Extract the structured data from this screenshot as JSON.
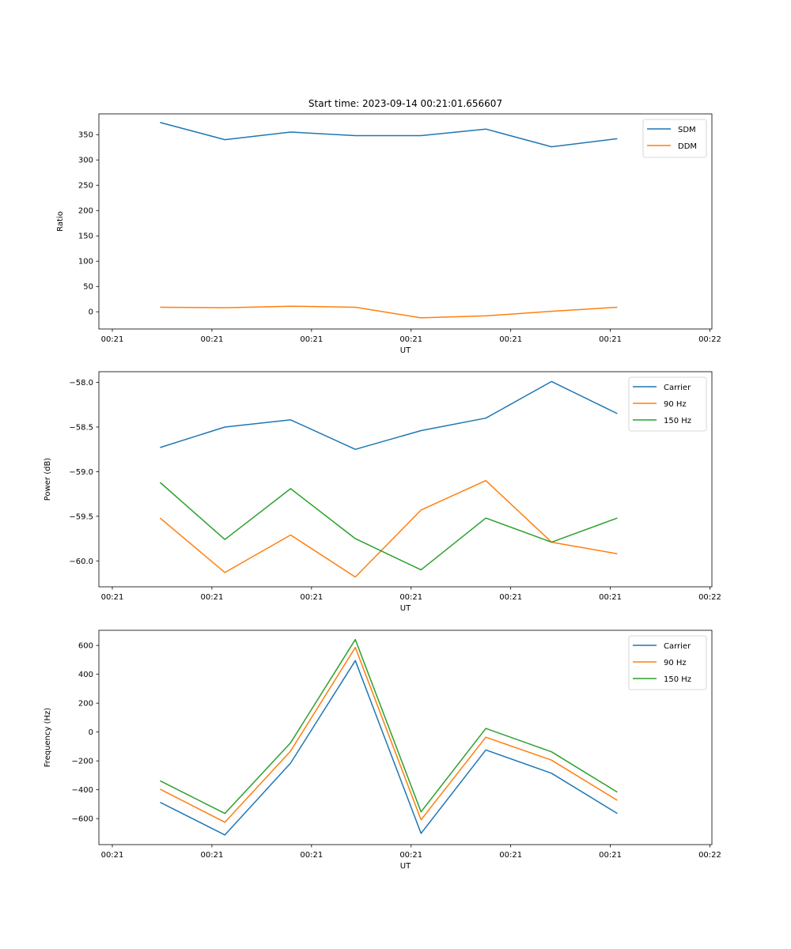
{
  "figure_title": "Start time: 2023-09-14 00:21:01.656607",
  "chart_data": [
    {
      "type": "line",
      "title": "Start time: 2023-09-14 00:21:01.656607",
      "xlabel": "UT",
      "ylabel": "Ratio",
      "x_unit": "seconds after 00:21:00",
      "x": [
        4.8,
        11.3,
        17.9,
        24.4,
        31.0,
        37.5,
        44.1,
        50.7
      ],
      "xlim": [
        -1.35,
        60.2
      ],
      "xticks": [
        0,
        10,
        20,
        30,
        40,
        50,
        60
      ],
      "xtick_labels": [
        "00:21",
        "00:21",
        "00:21",
        "00:21",
        "00:21",
        "00:21",
        "00:22"
      ],
      "ylim": [
        -34,
        391
      ],
      "yticks": [
        0,
        50,
        100,
        150,
        200,
        250,
        300,
        350
      ],
      "ytick_labels": [
        "0",
        "50",
        "100",
        "150",
        "200",
        "250",
        "300",
        "350"
      ],
      "grid": false,
      "legend": "top-right",
      "series": [
        {
          "name": "SDM",
          "color": "#1f77b4",
          "values": [
            374,
            340,
            355,
            348,
            348,
            361,
            326,
            342
          ]
        },
        {
          "name": "DDM",
          "color": "#ff7f0e",
          "values": [
            9,
            8,
            11,
            9,
            -12,
            -8,
            1,
            9
          ]
        }
      ]
    },
    {
      "type": "line",
      "title": "",
      "xlabel": "UT",
      "ylabel": "Power (dB)",
      "x_unit": "seconds after 00:21:00",
      "x": [
        4.8,
        11.3,
        17.9,
        24.4,
        31.0,
        37.5,
        44.1,
        50.7
      ],
      "xlim": [
        -1.35,
        60.2
      ],
      "xticks": [
        0,
        10,
        20,
        30,
        40,
        50,
        60
      ],
      "xtick_labels": [
        "00:21",
        "00:21",
        "00:21",
        "00:21",
        "00:21",
        "00:21",
        "00:22"
      ],
      "ylim": [
        -60.29,
        -57.88
      ],
      "yticks": [
        -60.0,
        -59.5,
        -59.0,
        -58.5,
        -58.0
      ],
      "ytick_labels": [
        "−60.0",
        "−59.5",
        "−59.0",
        "−58.5",
        "−58.0"
      ],
      "grid": false,
      "legend": "top-right",
      "series": [
        {
          "name": "Carrier",
          "color": "#1f77b4",
          "values": [
            -58.73,
            -58.5,
            -58.42,
            -58.75,
            -58.54,
            -58.4,
            -57.99,
            -58.35
          ]
        },
        {
          "name": "90 Hz",
          "color": "#ff7f0e",
          "values": [
            -59.52,
            -60.13,
            -59.71,
            -60.18,
            -59.43,
            -59.1,
            -59.79,
            -59.92
          ]
        },
        {
          "name": "150 Hz",
          "color": "#2ca02c",
          "values": [
            -59.12,
            -59.76,
            -59.19,
            -59.75,
            -60.1,
            -59.52,
            -59.79,
            -59.52
          ]
        }
      ]
    },
    {
      "type": "line",
      "title": "",
      "xlabel": "UT",
      "ylabel": "Frequency (Hz)",
      "x_unit": "seconds after 00:21:00",
      "x": [
        4.8,
        11.3,
        17.9,
        24.4,
        31.0,
        37.5,
        44.1,
        50.7
      ],
      "xlim": [
        -1.35,
        60.2
      ],
      "xticks": [
        0,
        10,
        20,
        30,
        40,
        50,
        60
      ],
      "xtick_labels": [
        "00:21",
        "00:21",
        "00:21",
        "00:21",
        "00:21",
        "00:21",
        "00:22"
      ],
      "ylim": [
        -780,
        705
      ],
      "yticks": [
        -600,
        -400,
        -200,
        0,
        200,
        400,
        600
      ],
      "ytick_labels": [
        "−600",
        "−400",
        "−200",
        "0",
        "200",
        "400",
        "600"
      ],
      "grid": false,
      "legend": "top-right",
      "series": [
        {
          "name": "Carrier",
          "color": "#1f77b4",
          "values": [
            -487,
            -713,
            -215,
            495,
            -702,
            -124,
            -286,
            -564
          ]
        },
        {
          "name": "90 Hz",
          "color": "#ff7f0e",
          "values": [
            -396,
            -625,
            -132,
            586,
            -608,
            -36,
            -195,
            -473
          ]
        },
        {
          "name": "150 Hz",
          "color": "#2ca02c",
          "values": [
            -338,
            -564,
            -74,
            641,
            -553,
            25,
            -137,
            -416
          ]
        }
      ]
    }
  ]
}
